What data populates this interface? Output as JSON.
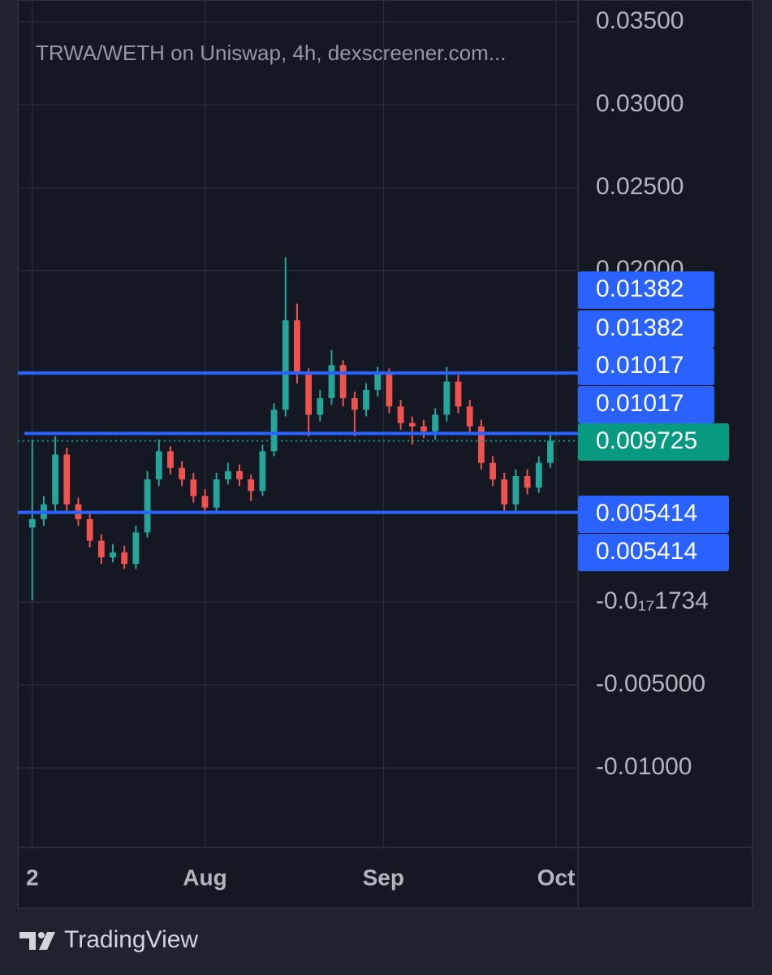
{
  "chart_data": {
    "type": "candlestick",
    "title": "TRWA/WETH on Uniswap, 4h, dexscreener.com...",
    "x": [
      2,
      4,
      6,
      8,
      10,
      12,
      14,
      16,
      18,
      20,
      22,
      24,
      26,
      28,
      30,
      32,
      34,
      36,
      38,
      40,
      42,
      44,
      46,
      48,
      50,
      52,
      54,
      56,
      58,
      60,
      62,
      64,
      66,
      68,
      70,
      72,
      74,
      76,
      78,
      80,
      82,
      84,
      86,
      88,
      90,
      92
    ],
    "open": [
      0.0045,
      0.005,
      0.0059,
      0.0089,
      0.0059,
      0.005,
      0.0037,
      0.0027,
      0.003,
      0.0023,
      0.0042,
      0.0074,
      0.0091,
      0.0081,
      0.0074,
      0.0064,
      0.0057,
      0.0074,
      0.0079,
      0.0074,
      0.0067,
      0.0091,
      0.0116,
      0.017,
      0.0138,
      0.0113,
      0.0123,
      0.0143,
      0.0123,
      0.0116,
      0.0128,
      0.0138,
      0.0118,
      0.0108,
      0.0106,
      0.0103,
      0.0113,
      0.0133,
      0.0118,
      0.0106,
      0.0084,
      0.0074,
      0.0059,
      0.0076,
      0.0069,
      0.0084
    ],
    "high": [
      0.0098,
      0.0064,
      0.01,
      0.0093,
      0.0063,
      0.0054,
      0.0041,
      0.0035,
      0.0034,
      0.0046,
      0.0079,
      0.0098,
      0.0094,
      0.0085,
      0.0078,
      0.0068,
      0.0078,
      0.0084,
      0.0083,
      0.0077,
      0.0095,
      0.012,
      0.0208,
      0.018,
      0.0141,
      0.0128,
      0.0152,
      0.0146,
      0.0127,
      0.0132,
      0.0142,
      0.0141,
      0.0122,
      0.0112,
      0.011,
      0.0117,
      0.0142,
      0.0137,
      0.0122,
      0.011,
      0.0088,
      0.0078,
      0.008,
      0.008,
      0.0088,
      0.0101
    ],
    "low": [
      0.0001,
      0.0046,
      0.0055,
      0.0055,
      0.0046,
      0.0033,
      0.0023,
      0.0024,
      0.002,
      0.002,
      0.0039,
      0.007,
      0.0077,
      0.007,
      0.006,
      0.0054,
      0.0054,
      0.0071,
      0.007,
      0.0061,
      0.0064,
      0.0088,
      0.0112,
      0.0132,
      0.01,
      0.0109,
      0.0119,
      0.0118,
      0.01,
      0.0112,
      0.0124,
      0.0114,
      0.0104,
      0.0095,
      0.0099,
      0.0098,
      0.0109,
      0.0114,
      0.0101,
      0.008,
      0.007,
      0.0054,
      0.0055,
      0.0065,
      0.0066,
      0.0081
    ],
    "close": [
      0.005,
      0.0059,
      0.0089,
      0.0059,
      0.005,
      0.0037,
      0.0027,
      0.003,
      0.0023,
      0.0042,
      0.0074,
      0.0091,
      0.0081,
      0.0074,
      0.0064,
      0.0057,
      0.0074,
      0.0079,
      0.0074,
      0.0067,
      0.0091,
      0.0116,
      0.017,
      0.0138,
      0.0113,
      0.0123,
      0.0143,
      0.0123,
      0.0116,
      0.0128,
      0.0138,
      0.0118,
      0.0108,
      0.0106,
      0.0103,
      0.0113,
      0.0133,
      0.0118,
      0.0106,
      0.0084,
      0.0074,
      0.0059,
      0.0076,
      0.0069,
      0.0084,
      0.009725
    ],
    "xlim": [
      -0.5,
      96.8
    ],
    "xticks": [
      2,
      {
        "value": 32,
        "label": "Aug"
      },
      {
        "value": 63,
        "label": "Sep"
      },
      {
        "value": 93,
        "label": "Oct"
      }
    ],
    "ylim": [
      -0.0148,
      0.03632
    ],
    "yticks": [
      {
        "value": 0.035,
        "label": "0.03500"
      },
      {
        "value": 0.03,
        "label": "0.03000"
      },
      {
        "value": 0.025,
        "label": "0.02500"
      },
      {
        "value": 0.02,
        "label": "0.02000"
      },
      {
        "value": -1.734e-18,
        "label": "-0.0₁₇1734"
      },
      {
        "value": -0.005,
        "label": "-0.005000"
      },
      {
        "value": -0.01,
        "label": "-0.01000"
      }
    ],
    "levels": [
      0.01382,
      0.01017,
      0.005414
    ],
    "grid": true,
    "up_color": "#26a69a",
    "down_color": "#ef5350",
    "level_color": "#2962ff",
    "last_color": "#089981"
  },
  "branding": "TradingView"
}
